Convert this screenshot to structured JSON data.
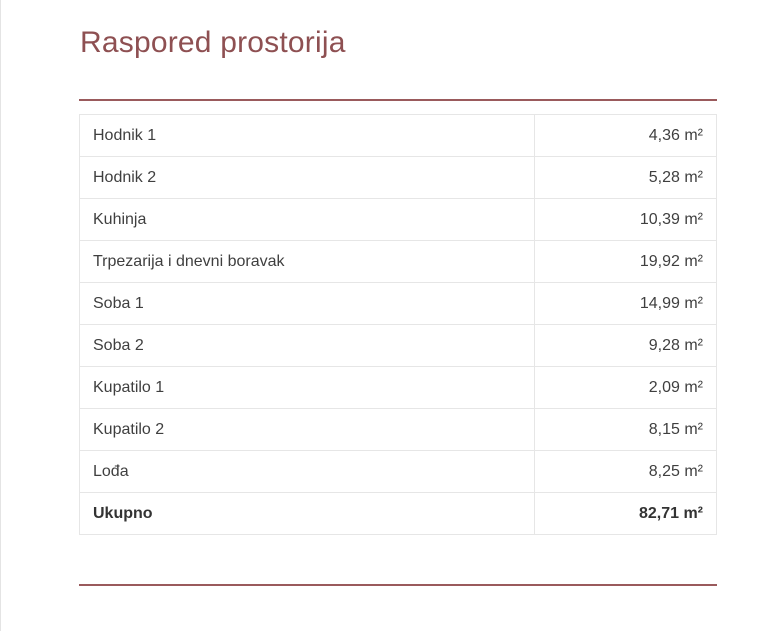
{
  "title": "Raspored prostorija",
  "accent_color": "#8e5052",
  "rooms": [
    {
      "name": "Hodnik 1",
      "area": "4,36 m²"
    },
    {
      "name": "Hodnik 2",
      "area": "5,28 m²"
    },
    {
      "name": "Kuhinja",
      "area": "10,39 m²"
    },
    {
      "name": "Trpezarija i dnevni boravak",
      "area": "19,92 m²"
    },
    {
      "name": "Soba 1",
      "area": "14,99 m²"
    },
    {
      "name": "Soba 2",
      "area": "9,28 m²"
    },
    {
      "name": "Kupatilo 1",
      "area": "2,09 m²"
    },
    {
      "name": "Kupatilo 2",
      "area": "8,15 m²"
    },
    {
      "name": "Lođa",
      "area": "8,25 m²"
    }
  ],
  "total": {
    "label": "Ukupno",
    "area": "82,71 m²"
  }
}
